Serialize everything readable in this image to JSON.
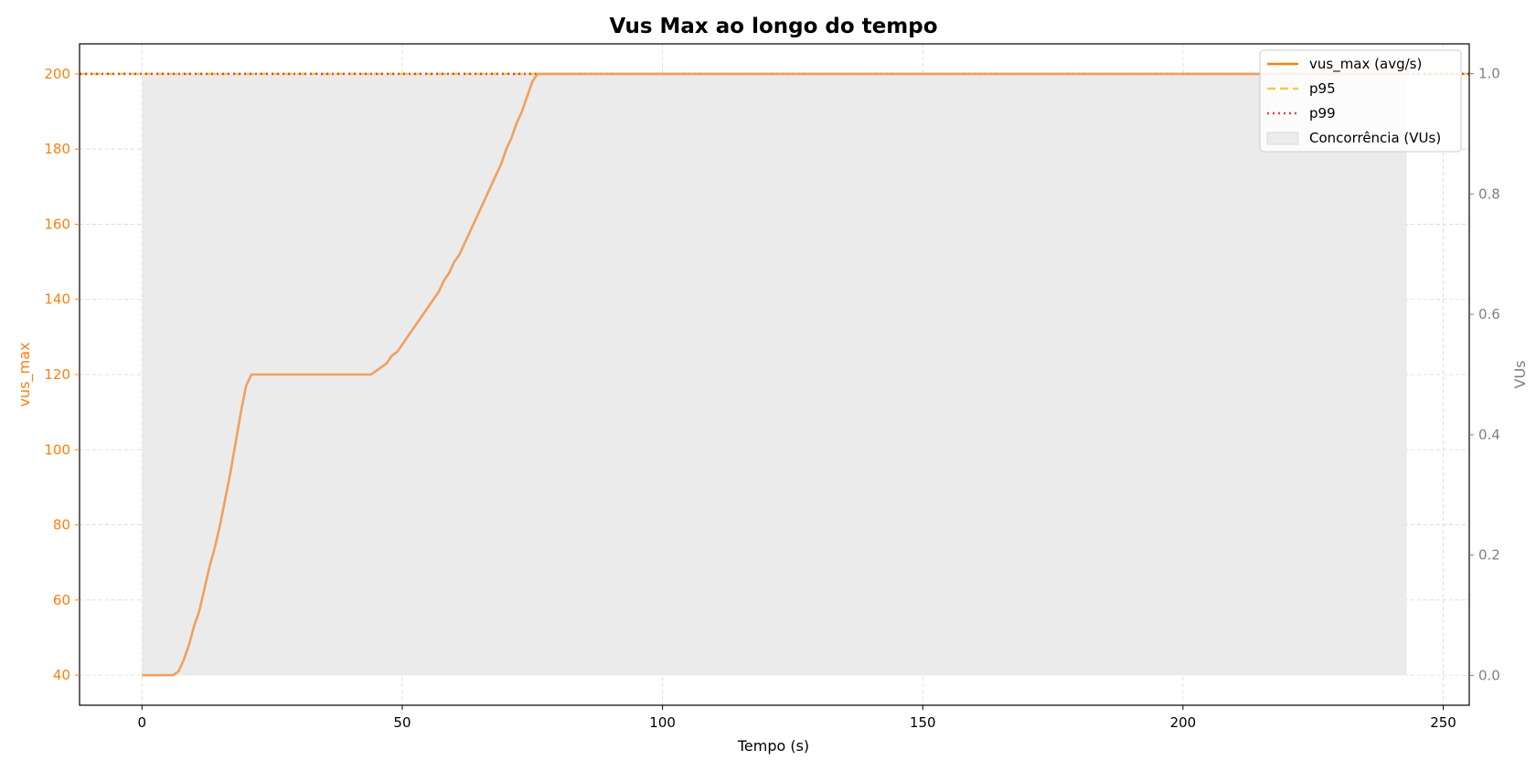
{
  "colors": {
    "primary": "#ff7f0e",
    "primary_line": "#f0a060",
    "p95": "#f2c94c",
    "p99": "#e8413c",
    "fill": "#ebebeb",
    "right_axis": "#808080",
    "grid": "#d8d8d8",
    "axis": "#000000"
  },
  "chart_data": {
    "type": "line",
    "title": "Vus Max ao longo do tempo",
    "xlabel": "Tempo (s)",
    "ylabel": "vus_max",
    "ylabel_right": "VUs",
    "xlim": [
      -12,
      255
    ],
    "ylim": [
      32,
      208
    ],
    "ylim_right": [
      -0.0495,
      1.0495
    ],
    "grid": true,
    "legend_position": "top-right",
    "x_ticks": [
      0,
      50,
      100,
      150,
      200,
      250
    ],
    "x_tick_labels": [
      "0",
      "50",
      "100",
      "150",
      "200",
      "250"
    ],
    "y_ticks": [
      40,
      60,
      80,
      100,
      120,
      140,
      160,
      180,
      200
    ],
    "y_tick_labels": [
      "40",
      "60",
      "80",
      "100",
      "120",
      "140",
      "160",
      "180",
      "200"
    ],
    "y_right_ticks": [
      0,
      0.2,
      0.4,
      0.6,
      0.8,
      1.0
    ],
    "y_right_tick_labels": [
      "0.0",
      "0.2",
      "0.4",
      "0.6",
      "0.8",
      "1.0"
    ],
    "series": [
      {
        "name": "vus_max (avg/s)",
        "axis": "left",
        "style": "solid",
        "x": [
          0,
          6,
          7,
          8,
          9,
          10,
          11,
          12,
          13,
          14,
          15,
          16,
          17,
          18,
          19,
          20,
          21,
          22,
          44,
          45,
          46,
          47,
          48,
          49,
          50,
          52,
          54,
          56,
          57,
          58,
          59,
          60,
          61,
          62,
          63,
          65,
          67,
          69,
          70,
          71,
          72,
          73,
          74,
          75,
          76,
          77,
          243
        ],
        "y": [
          40,
          40,
          41,
          44,
          48,
          53,
          57,
          63,
          69,
          74,
          80,
          87,
          94,
          102,
          110,
          117,
          120,
          120,
          120,
          121,
          122,
          123,
          125,
          126,
          128,
          132,
          136,
          140,
          142,
          145,
          147,
          150,
          152,
          155,
          158,
          164,
          170,
          176,
          180,
          183,
          187,
          190,
          194,
          198,
          200,
          200,
          200
        ]
      },
      {
        "name": "p95",
        "axis": "left",
        "style": "dashed",
        "value": 200
      },
      {
        "name": "p99",
        "axis": "left",
        "style": "dotted",
        "value": 200
      },
      {
        "name": "Concorrência (VUs)",
        "axis": "right",
        "style": "area",
        "x": [
          0,
          243
        ],
        "y": [
          1,
          1
        ]
      }
    ]
  }
}
